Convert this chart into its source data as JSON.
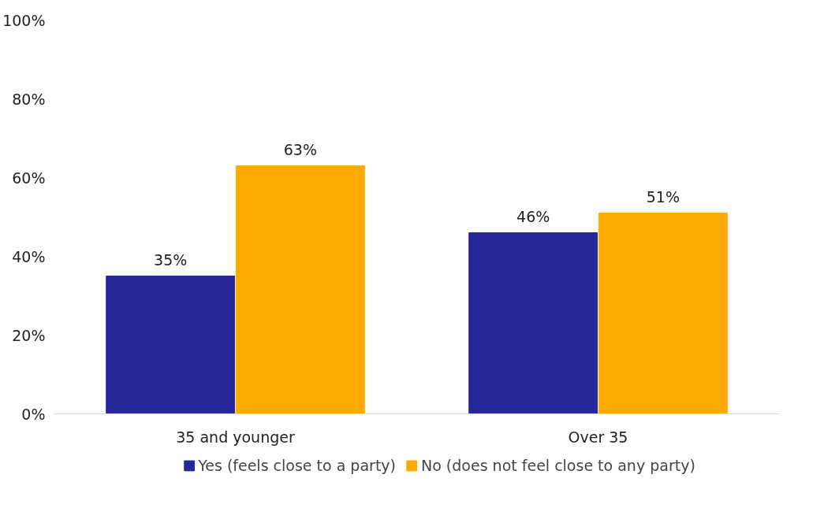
{
  "chart_data": {
    "type": "bar",
    "categories": [
      "35 and younger",
      "Over 35"
    ],
    "series": [
      {
        "name": "Yes (feels close to a party)",
        "color": "#27279a",
        "values": [
          35,
          46
        ],
        "value_labels": [
          "35%",
          "46%"
        ]
      },
      {
        "name": "No (does not feel close to any party)",
        "color": "#ffaa00",
        "values": [
          63,
          51
        ],
        "value_labels": [
          "63%",
          "51%"
        ]
      }
    ],
    "ylim": [
      0,
      100
    ],
    "yticks": [
      {
        "value": 0,
        "label": "0%"
      },
      {
        "value": 20,
        "label": "20%"
      },
      {
        "value": 40,
        "label": "40%"
      },
      {
        "value": 60,
        "label": "60%"
      },
      {
        "value": 80,
        "label": "80%"
      },
      {
        "value": 100,
        "label": "100%"
      }
    ],
    "legend": "bottom"
  }
}
